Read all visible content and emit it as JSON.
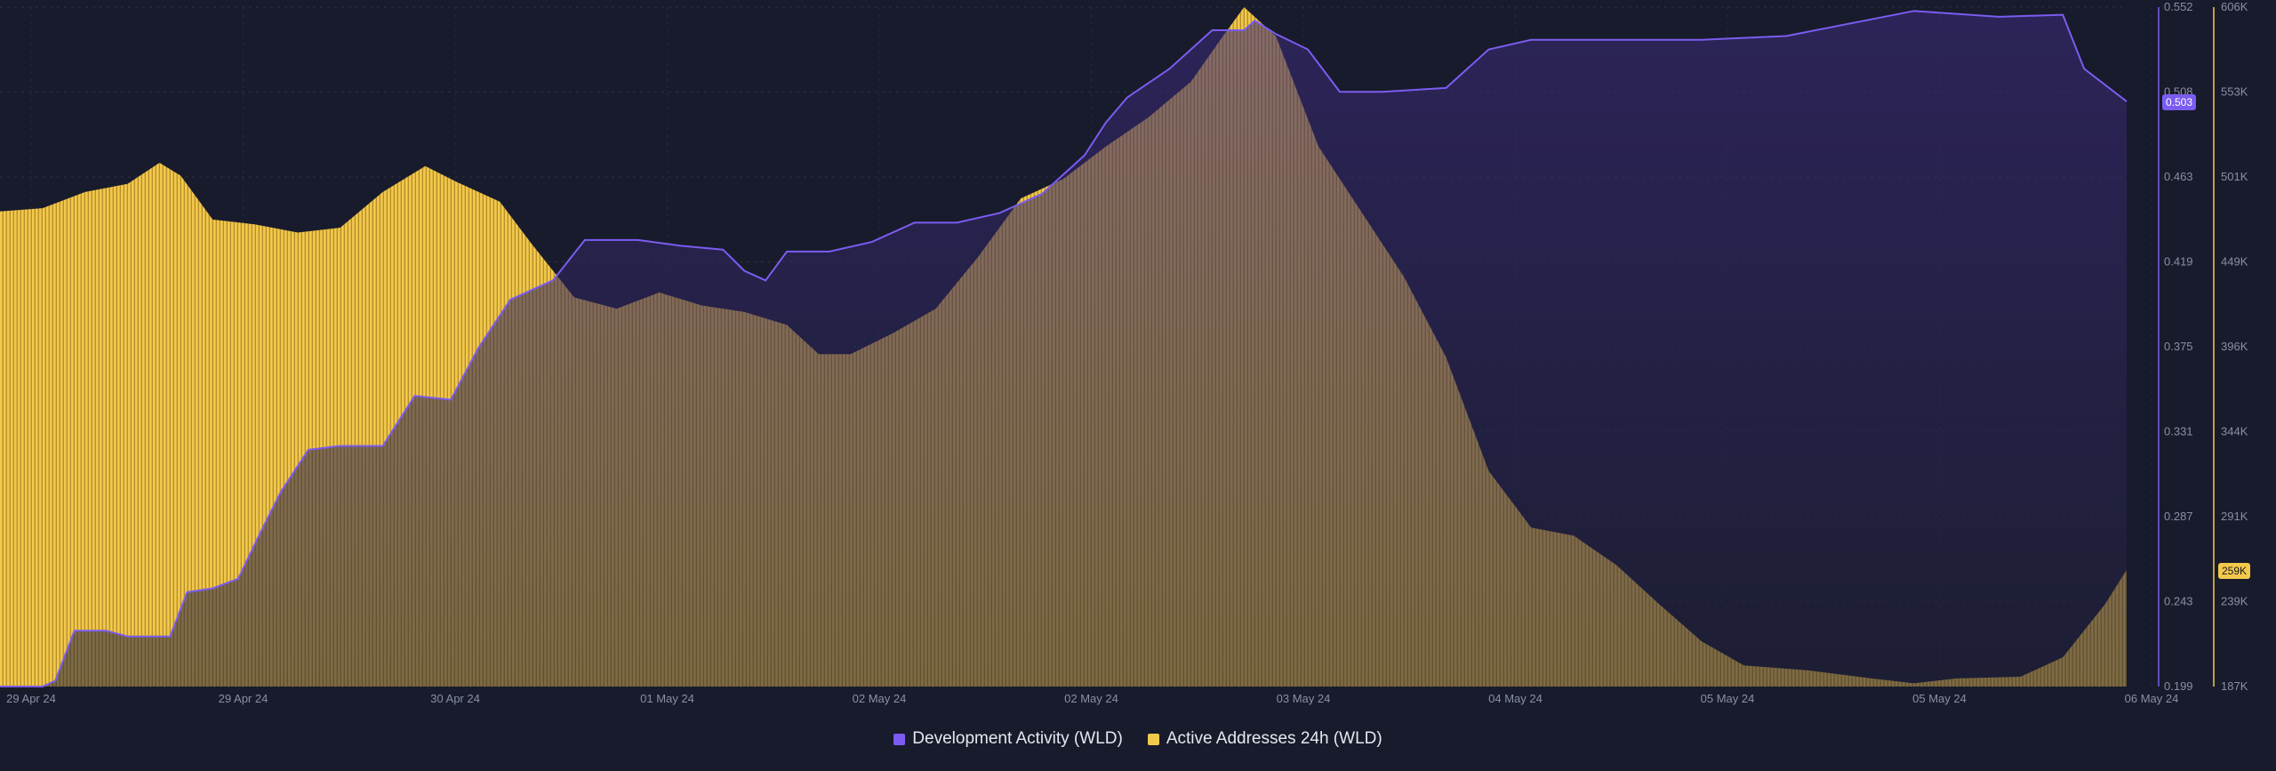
{
  "chart_data": {
    "type": "area",
    "x_tick_labels": [
      "29 Apr 24",
      "29 Apr 24",
      "30 Apr 24",
      "01 May 24",
      "02 May 24",
      "02 May 24",
      "03 May 24",
      "04 May 24",
      "05 May 24",
      "05 May 24",
      "06 May 24"
    ],
    "left_axis_ticks": [
      "0.552",
      "0.508",
      "0.463",
      "0.419",
      "0.375",
      "0.331",
      "0.287",
      "0.243",
      "0.199"
    ],
    "right_axis_ticks": [
      "606K",
      "553K",
      "501K",
      "449K",
      "396K",
      "344K",
      "291K",
      "239K",
      "187K"
    ],
    "left_ylim": [
      0.199,
      0.552
    ],
    "right_ylim": [
      187000,
      606000
    ],
    "current_values": {
      "development_activity": "0.503",
      "active_addresses": "259K"
    },
    "series": [
      {
        "name": "Development Activity (WLD)",
        "axis": "left",
        "color": "#7b5cf0",
        "points": [
          [
            0,
            0.199
          ],
          [
            0.02,
            0.199
          ],
          [
            0.026,
            0.202
          ],
          [
            0.035,
            0.228
          ],
          [
            0.05,
            0.228
          ],
          [
            0.06,
            0.225
          ],
          [
            0.08,
            0.225
          ],
          [
            0.088,
            0.248
          ],
          [
            0.1,
            0.25
          ],
          [
            0.112,
            0.255
          ],
          [
            0.122,
            0.278
          ],
          [
            0.132,
            0.3
          ],
          [
            0.145,
            0.322
          ],
          [
            0.16,
            0.324
          ],
          [
            0.18,
            0.324
          ],
          [
            0.195,
            0.35
          ],
          [
            0.212,
            0.348
          ],
          [
            0.225,
            0.375
          ],
          [
            0.24,
            0.4
          ],
          [
            0.26,
            0.41
          ],
          [
            0.275,
            0.431
          ],
          [
            0.3,
            0.431
          ],
          [
            0.32,
            0.428
          ],
          [
            0.34,
            0.426
          ],
          [
            0.35,
            0.415
          ],
          [
            0.36,
            0.41
          ],
          [
            0.37,
            0.425
          ],
          [
            0.39,
            0.425
          ],
          [
            0.41,
            0.43
          ],
          [
            0.43,
            0.44
          ],
          [
            0.45,
            0.44
          ],
          [
            0.47,
            0.445
          ],
          [
            0.49,
            0.455
          ],
          [
            0.5,
            0.465
          ],
          [
            0.51,
            0.475
          ],
          [
            0.52,
            0.492
          ],
          [
            0.53,
            0.505
          ],
          [
            0.55,
            0.52
          ],
          [
            0.57,
            0.54
          ],
          [
            0.585,
            0.54
          ],
          [
            0.59,
            0.545
          ],
          [
            0.6,
            0.538
          ],
          [
            0.615,
            0.53
          ],
          [
            0.63,
            0.508
          ],
          [
            0.65,
            0.508
          ],
          [
            0.68,
            0.51
          ],
          [
            0.7,
            0.53
          ],
          [
            0.72,
            0.535
          ],
          [
            0.76,
            0.535
          ],
          [
            0.8,
            0.535
          ],
          [
            0.84,
            0.537
          ],
          [
            0.9,
            0.55
          ],
          [
            0.94,
            0.547
          ],
          [
            0.97,
            0.548
          ],
          [
            0.98,
            0.52
          ],
          [
            1.0,
            0.503
          ]
        ]
      },
      {
        "name": "Active Addresses 24h (WLD)",
        "axis": "right",
        "color": "#f2c94c",
        "points": [
          [
            0,
            480000
          ],
          [
            0.02,
            482000
          ],
          [
            0.04,
            492000
          ],
          [
            0.06,
            497000
          ],
          [
            0.075,
            510000
          ],
          [
            0.085,
            502000
          ],
          [
            0.1,
            475000
          ],
          [
            0.12,
            472000
          ],
          [
            0.14,
            467000
          ],
          [
            0.16,
            470000
          ],
          [
            0.18,
            492000
          ],
          [
            0.2,
            508000
          ],
          [
            0.215,
            498000
          ],
          [
            0.235,
            486000
          ],
          [
            0.25,
            460000
          ],
          [
            0.27,
            427000
          ],
          [
            0.29,
            420000
          ],
          [
            0.31,
            430000
          ],
          [
            0.33,
            422000
          ],
          [
            0.35,
            418000
          ],
          [
            0.37,
            410000
          ],
          [
            0.385,
            392000
          ],
          [
            0.4,
            392000
          ],
          [
            0.42,
            405000
          ],
          [
            0.44,
            420000
          ],
          [
            0.46,
            452000
          ],
          [
            0.48,
            488000
          ],
          [
            0.5,
            500000
          ],
          [
            0.52,
            520000
          ],
          [
            0.54,
            538000
          ],
          [
            0.56,
            560000
          ],
          [
            0.575,
            588000
          ],
          [
            0.585,
            606000
          ],
          [
            0.6,
            588000
          ],
          [
            0.62,
            520000
          ],
          [
            0.64,
            480000
          ],
          [
            0.66,
            440000
          ],
          [
            0.68,
            390000
          ],
          [
            0.7,
            320000
          ],
          [
            0.72,
            285000
          ],
          [
            0.74,
            280000
          ],
          [
            0.76,
            262000
          ],
          [
            0.78,
            238000
          ],
          [
            0.8,
            215000
          ],
          [
            0.82,
            200000
          ],
          [
            0.85,
            197000
          ],
          [
            0.88,
            192000
          ],
          [
            0.9,
            189000
          ],
          [
            0.92,
            192000
          ],
          [
            0.95,
            193000
          ],
          [
            0.97,
            205000
          ],
          [
            0.99,
            238000
          ],
          [
            1.0,
            259000
          ]
        ]
      }
    ]
  }
}
